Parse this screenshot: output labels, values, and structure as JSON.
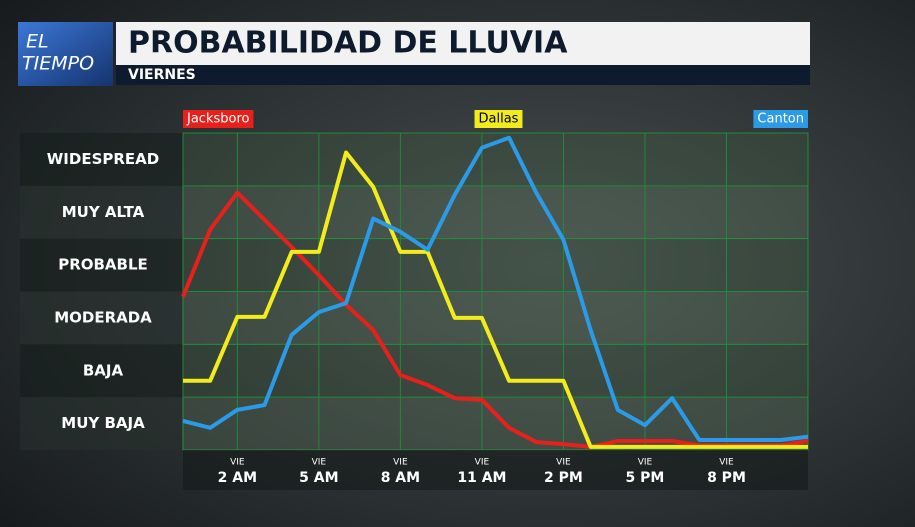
{
  "logo": [
    "EL",
    "TIEMPO"
  ],
  "chart_data": {
    "type": "line",
    "title": "PROBABILIDAD DE LLUVIA",
    "subtitle": "VIERNES",
    "x": [
      0,
      1,
      2,
      3,
      4,
      5,
      6,
      7,
      8,
      9,
      10,
      11,
      12,
      13,
      14,
      15,
      16,
      17,
      18,
      19,
      20,
      21,
      22,
      23
    ],
    "xlim": [
      0,
      23
    ],
    "xticks": [
      {
        "value": 2,
        "label": "2 AM"
      },
      {
        "value": 5,
        "label": "5 AM"
      },
      {
        "value": 8,
        "label": "8 AM"
      },
      {
        "value": 11,
        "label": "11 AM"
      },
      {
        "value": 14,
        "label": "2 PM"
      },
      {
        "value": 17,
        "label": "5 PM"
      },
      {
        "value": 20,
        "label": "8 PM"
      }
    ],
    "xtick_day": "VIE",
    "ylim": [
      0,
      6
    ],
    "yticks": [
      {
        "value": 0.5,
        "label": "MUY BAJA"
      },
      {
        "value": 1.5,
        "label": "BAJA"
      },
      {
        "value": 2.5,
        "label": "MODERADA"
      },
      {
        "value": 3.5,
        "label": "PROBABLE"
      },
      {
        "value": 4.5,
        "label": "MUY ALTA"
      },
      {
        "value": 5.5,
        "label": "WIDESPREAD"
      }
    ],
    "series": [
      {
        "name": "Jacksboro",
        "color": "#e8201c",
        "values": [
          2.9,
          4.17,
          4.87,
          4.36,
          3.84,
          3.31,
          2.75,
          2.27,
          1.42,
          1.23,
          0.98,
          0.95,
          0.42,
          0.15,
          0.11,
          0.06,
          0.17,
          0.17,
          0.17,
          0.09,
          0.09,
          0.09,
          0.09,
          0.17
        ]
      },
      {
        "name": "Dallas",
        "color": "#f2ec1c",
        "values": [
          1.31,
          1.31,
          2.52,
          2.52,
          3.75,
          3.75,
          5.63,
          4.98,
          3.75,
          3.75,
          2.5,
          2.5,
          1.31,
          1.31,
          1.31,
          0.06,
          0.06,
          0.06,
          0.06,
          0.06,
          0.06,
          0.06,
          0.06,
          0.06
        ]
      },
      {
        "name": "Canton",
        "color": "#2b9be8",
        "values": [
          0.55,
          0.42,
          0.76,
          0.85,
          2.18,
          2.61,
          2.78,
          4.38,
          4.13,
          3.79,
          4.83,
          5.72,
          5.91,
          4.87,
          3.98,
          2.27,
          0.76,
          0.47,
          0.98,
          0.19,
          0.19,
          0.19,
          0.19,
          0.25
        ]
      }
    ]
  }
}
